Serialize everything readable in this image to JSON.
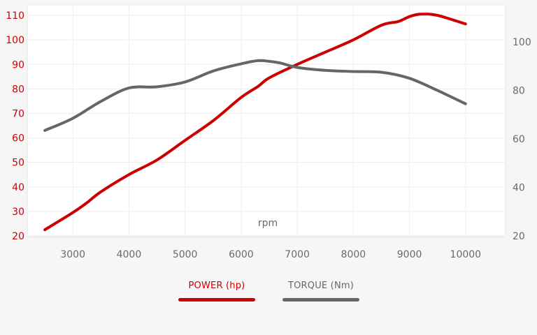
{
  "chart_data": {
    "type": "line",
    "xlabel": "rpm",
    "x_ticks": [
      "3000",
      "4000",
      "5000",
      "6000",
      "7000",
      "8000",
      "9000",
      "10000"
    ],
    "xlim": [
      2200,
      10700
    ],
    "y_left": {
      "ticks": [
        "20",
        "30",
        "40",
        "50",
        "60",
        "70",
        "80",
        "90",
        "100",
        "110"
      ],
      "ylim": [
        20,
        114
      ]
    },
    "y_right": {
      "ticks": [
        "20",
        "40",
        "60",
        "80",
        "100"
      ],
      "ylim": [
        20,
        115
      ]
    },
    "grid": true,
    "legend_position": "bottom-center",
    "series": [
      {
        "name": "POWER (hp)",
        "axis": "left",
        "color": "#cc0000",
        "points": [
          [
            2500,
            22.5
          ],
          [
            3000,
            29.5
          ],
          [
            3250,
            33.5
          ],
          [
            3500,
            38
          ],
          [
            4000,
            45
          ],
          [
            4500,
            51
          ],
          [
            5000,
            59
          ],
          [
            5500,
            67
          ],
          [
            6000,
            76.5
          ],
          [
            6300,
            81
          ],
          [
            6500,
            84.5
          ],
          [
            7000,
            90
          ],
          [
            7500,
            95
          ],
          [
            8000,
            100
          ],
          [
            8500,
            106
          ],
          [
            8800,
            107.5
          ],
          [
            9000,
            109.5
          ],
          [
            9200,
            110.5
          ],
          [
            9500,
            110
          ],
          [
            10000,
            106.5
          ]
        ]
      },
      {
        "name": "TORQUE (Nm)",
        "axis": "right",
        "color": "#666666",
        "points": [
          [
            2500,
            63.5
          ],
          [
            3000,
            68.5
          ],
          [
            3500,
            75.5
          ],
          [
            4000,
            81
          ],
          [
            4500,
            81.5
          ],
          [
            5000,
            83.5
          ],
          [
            5500,
            88
          ],
          [
            6000,
            91
          ],
          [
            6300,
            92.3
          ],
          [
            6500,
            92
          ],
          [
            6700,
            91.3
          ],
          [
            7000,
            89.5
          ],
          [
            7500,
            88.3
          ],
          [
            8000,
            87.8
          ],
          [
            8500,
            87.5
          ],
          [
            9000,
            85
          ],
          [
            9500,
            80
          ],
          [
            10000,
            74.5
          ]
        ]
      }
    ]
  },
  "legend": {
    "power_label": "POWER (hp)",
    "torque_label": "TORQUE (Nm)",
    "power_color": "#cc0000",
    "torque_color": "#666666"
  }
}
